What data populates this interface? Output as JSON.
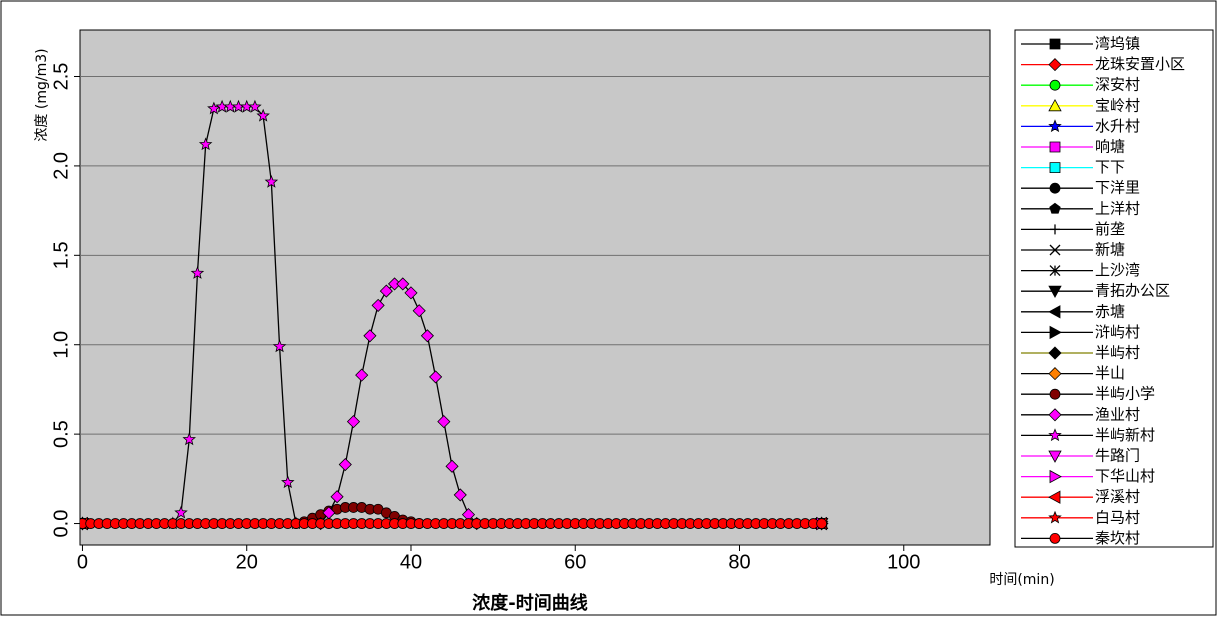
{
  "chart_data": {
    "type": "line",
    "y_label": "浓度 (mg/m3)",
    "x_label": "时间(min)",
    "caption": "浓度-时间曲线",
    "xlim": [
      -0.3,
      110.5
    ],
    "ylim": [
      -0.12,
      2.76
    ],
    "xticks": [
      0,
      20,
      40,
      60,
      80,
      100
    ],
    "yticks": [
      0.0,
      0.5,
      1.0,
      1.5,
      2.0,
      2.5
    ],
    "yticks_labels": [
      "0.0",
      "0.5",
      "1.0",
      "1.5",
      "2.0",
      "2.5"
    ],
    "grid": true,
    "background": "#c8c8c8",
    "legend": "right",
    "series": [
      {
        "name": "湾坞镇",
        "color": "#000000",
        "marker": "square",
        "x": [
          0,
          90
        ],
        "values": [
          0,
          0
        ]
      },
      {
        "name": "龙珠安置小区",
        "color": "#ff0000",
        "marker": "diamond",
        "x": [
          0,
          90
        ],
        "values": [
          0,
          0
        ]
      },
      {
        "name": "深安村",
        "color": "#00ff00",
        "marker": "circle",
        "x": [
          0,
          90
        ],
        "values": [
          0,
          0
        ]
      },
      {
        "name": "宝岭村",
        "color": "#ffff00",
        "marker": "triangle",
        "x": [
          0,
          90
        ],
        "values": [
          0,
          0
        ]
      },
      {
        "name": "水升村",
        "color": "#0000ff",
        "marker": "star",
        "x": [
          0,
          90
        ],
        "values": [
          0,
          0
        ]
      },
      {
        "name": "响塘",
        "color": "#ff00ff",
        "marker": "square",
        "x": [
          0,
          90
        ],
        "values": [
          0,
          0
        ]
      },
      {
        "name": "下下",
        "color": "#00ffff",
        "marker": "square",
        "x": [
          0,
          90
        ],
        "values": [
          0,
          0
        ]
      },
      {
        "name": "下洋里",
        "color": "#000000",
        "marker": "circle",
        "x": [
          0,
          90
        ],
        "values": [
          0,
          0
        ]
      },
      {
        "name": "上洋村",
        "color": "#000000",
        "marker": "pentagon",
        "x": [
          0,
          90
        ],
        "values": [
          0,
          0
        ]
      },
      {
        "name": "前垄",
        "color": "#000000",
        "marker": "plus",
        "x": [
          0,
          90
        ],
        "values": [
          0,
          0
        ]
      },
      {
        "name": "新塘",
        "color": "#000000",
        "marker": "cross",
        "x": [
          0,
          90
        ],
        "values": [
          0,
          0
        ]
      },
      {
        "name": "上沙湾",
        "color": "#000000",
        "marker": "asterisk",
        "x": [
          0,
          90
        ],
        "values": [
          0,
          0
        ]
      },
      {
        "name": "青拓办公区",
        "color": "#000000",
        "marker": "triangle-down",
        "x": [
          0,
          90
        ],
        "values": [
          0,
          0
        ]
      },
      {
        "name": "赤塘",
        "color": "#000000",
        "marker": "triangle-left",
        "x": [
          0,
          90
        ],
        "values": [
          0,
          0
        ]
      },
      {
        "name": "浒屿村",
        "color": "#000000",
        "marker": "triangle-right",
        "x": [
          0,
          90
        ],
        "values": [
          0,
          0
        ]
      },
      {
        "name": "半屿村",
        "color": "#000000",
        "line_color": "#808000",
        "marker": "diamond",
        "x": [
          0,
          90
        ],
        "values": [
          0,
          0
        ]
      },
      {
        "name": "半山",
        "color": "#ff8000",
        "line_color": "#000000",
        "marker": "diamond",
        "x": [
          0,
          90
        ],
        "values": [
          0,
          0
        ]
      },
      {
        "name": "半屿小学",
        "color": "#800000",
        "line_color": "#000000",
        "marker": "circle",
        "x": [
          26,
          27,
          28,
          29,
          30,
          31,
          32,
          33,
          34,
          35,
          36,
          37,
          38,
          39,
          40,
          41
        ],
        "values": [
          0,
          0.01,
          0.03,
          0.05,
          0.07,
          0.08,
          0.09,
          0.09,
          0.09,
          0.08,
          0.08,
          0.06,
          0.04,
          0.02,
          0.01,
          0
        ]
      },
      {
        "name": "渔业村",
        "color": "#ff00ff",
        "line_color": "#000000",
        "marker": "diamond",
        "x": [
          29,
          30,
          31,
          32,
          33,
          34,
          35,
          36,
          37,
          38,
          39,
          40,
          41,
          42,
          43,
          44,
          45,
          46,
          47,
          48
        ],
        "values": [
          0,
          0.06,
          0.15,
          0.33,
          0.57,
          0.83,
          1.05,
          1.22,
          1.3,
          1.34,
          1.34,
          1.29,
          1.19,
          1.05,
          0.82,
          0.57,
          0.32,
          0.16,
          0.05,
          0
        ]
      },
      {
        "name": "半屿新村",
        "color": "#ff00ff",
        "line_color": "#000000",
        "marker": "star",
        "x": [
          11,
          12,
          13,
          14,
          15,
          16,
          17,
          18,
          19,
          20,
          21,
          22,
          23,
          24,
          25,
          26
        ],
        "values": [
          0,
          0.06,
          0.47,
          1.4,
          2.12,
          2.32,
          2.33,
          2.33,
          2.33,
          2.33,
          2.33,
          2.28,
          1.91,
          0.99,
          0.23,
          0
        ]
      },
      {
        "name": "牛路门",
        "color": "#ff00ff",
        "marker": "triangle-down",
        "x": [
          0,
          90
        ],
        "values": [
          0,
          0
        ]
      },
      {
        "name": "下华山村",
        "color": "#ff00ff",
        "marker": "triangle-right",
        "x": [
          0,
          90
        ],
        "values": [
          0,
          0
        ]
      },
      {
        "name": "浮溪村",
        "color": "#ff0000",
        "marker": "triangle-left",
        "x": [
          0,
          90
        ],
        "values": [
          0,
          0
        ]
      },
      {
        "name": "白马村",
        "color": "#ff0000",
        "marker": "star",
        "x": [
          0,
          90
        ],
        "values": [
          0,
          0
        ]
      },
      {
        "name": "秦坎村",
        "color": "#ff0000",
        "line_color": "#000000",
        "marker": "circle",
        "x": [
          0,
          1,
          2,
          3,
          4,
          5,
          6,
          7,
          8,
          9,
          10,
          11,
          12,
          13,
          14,
          15,
          16,
          17,
          18,
          19,
          20,
          21,
          22,
          23,
          24,
          25,
          26,
          27,
          28,
          29,
          30,
          31,
          32,
          33,
          34,
          35,
          36,
          37,
          38,
          39,
          40,
          41,
          42,
          43,
          44,
          45,
          46,
          47,
          48,
          49,
          50,
          51,
          52,
          53,
          54,
          55,
          56,
          57,
          58,
          59,
          60,
          61,
          62,
          63,
          64,
          65,
          66,
          67,
          68,
          69,
          70,
          71,
          72,
          73,
          74,
          75,
          76,
          77,
          78,
          79,
          80,
          81,
          82,
          83,
          84,
          85,
          86,
          87,
          88,
          89,
          90
        ],
        "values": [
          0,
          0,
          0,
          0,
          0,
          0,
          0,
          0,
          0,
          0,
          0,
          0,
          0,
          0,
          0,
          0,
          0,
          0,
          0,
          0,
          0,
          0,
          0,
          0,
          0,
          0,
          0,
          0,
          0,
          0,
          0,
          0,
          0,
          0,
          0,
          0,
          0,
          0,
          0,
          0,
          0,
          0,
          0,
          0,
          0,
          0,
          0,
          0,
          0,
          0,
          0,
          0,
          0,
          0,
          0,
          0,
          0,
          0,
          0,
          0,
          0,
          0,
          0,
          0,
          0,
          0,
          0,
          0,
          0,
          0,
          0,
          0,
          0,
          0,
          0,
          0,
          0,
          0,
          0,
          0,
          0,
          0,
          0,
          0,
          0,
          0,
          0,
          0,
          0,
          0,
          0
        ]
      }
    ]
  }
}
